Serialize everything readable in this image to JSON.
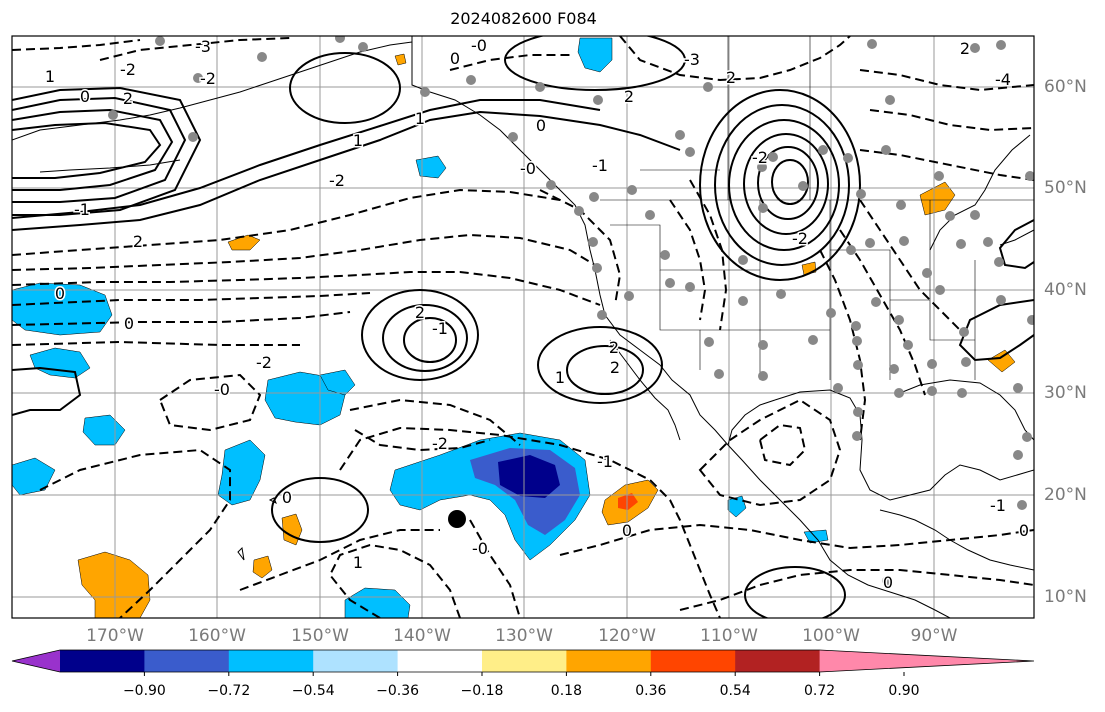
{
  "title": "2024082600 F084",
  "lon_labels": [
    "170°W",
    "160°W",
    "150°W",
    "140°W",
    "130°W",
    "120°W",
    "110°W",
    "100°W",
    "90°W"
  ],
  "lat_labels": [
    "60°N",
    "50°N",
    "40°N",
    "30°N",
    "20°N",
    "10°N"
  ],
  "colorbar": {
    "ticks": [
      "−0.90",
      "−0.72",
      "−0.54",
      "−0.36",
      "−0.18",
      "0.18",
      "0.36",
      "0.54",
      "0.72",
      "0.90"
    ],
    "colors": [
      "#9932cc",
      "#00008b",
      "#3a5ccc",
      "#00bfff",
      "#aee2ff",
      "#ffffff",
      "#ffee88",
      "#ffa500",
      "#ff4500",
      "#b22222",
      "#ff88aa"
    ]
  },
  "contour_labels": [
    "-0",
    "-3",
    "-2",
    "1",
    "0",
    "2",
    "-2",
    "1",
    "0",
    "0",
    "-3",
    "2",
    "2",
    "-0",
    "-1",
    "1",
    "-2",
    "-4",
    "2",
    "-2",
    "-1",
    "2",
    "-2",
    "2",
    "-1",
    "0",
    "0",
    "-2",
    "-0",
    "1",
    "2",
    "2",
    "-2",
    "-1",
    "0",
    "0",
    "-0",
    "1",
    "0",
    "-1",
    "0"
  ],
  "fill_colors": {
    "light_blue": "#00bfff",
    "mid_blue": "#3a5ccc",
    "dark_blue": "#00008b",
    "orange": "#ffa500",
    "red": "#ff4500",
    "dot": "#888888"
  },
  "grid": true
}
